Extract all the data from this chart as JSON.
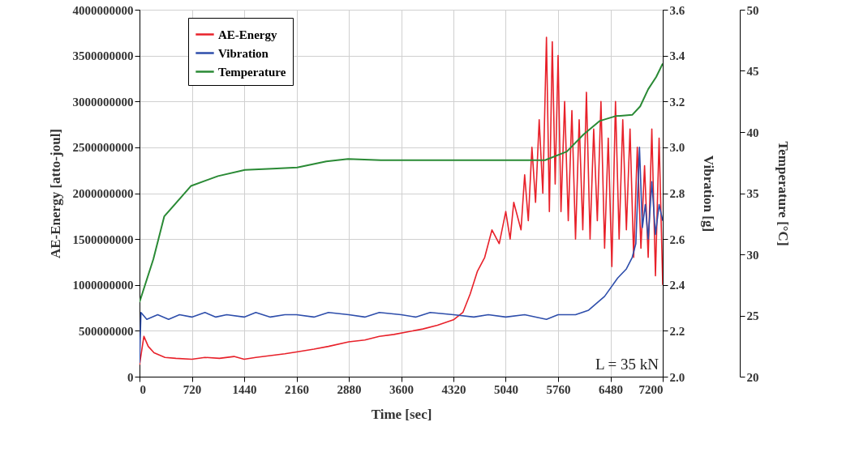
{
  "chart_data": {
    "type": "line",
    "xlabel": "Time [sec]",
    "ylabel": "AE-Energy [atto-joul]",
    "y2label": "Vibration [g]",
    "y3label": "Temperature [°C]",
    "xlim": [
      0,
      7200
    ],
    "xticks": [
      0,
      720,
      1440,
      2160,
      2880,
      3600,
      4320,
      5040,
      5760,
      6480,
      7200
    ],
    "ylim": [
      0,
      4000000000
    ],
    "yticks": [
      0,
      500000000,
      1000000000,
      1500000000,
      2000000000,
      2500000000,
      3000000000,
      3500000000,
      4000000000
    ],
    "y2lim": [
      2.0,
      3.6
    ],
    "y2ticks": [
      {
        "value": 2,
        "label": "2.0"
      },
      2.2,
      2.4,
      2.6,
      2.8,
      {
        "value": 3,
        "label": "3.0"
      },
      3.2,
      3.4,
      3.6
    ],
    "y3lim": [
      20,
      50
    ],
    "y3ticks": [
      20,
      25,
      30,
      35,
      40,
      45,
      50
    ],
    "grid": true,
    "legend": "top left",
    "annotations": [
      "L = 35 kN"
    ],
    "series": [
      {
        "name": "AE-Energy",
        "color": "#e8212a",
        "axis": "y",
        "x": [
          0,
          60,
          120,
          200,
          350,
          500,
          720,
          900,
          1100,
          1300,
          1440,
          1600,
          1800,
          2000,
          2160,
          2400,
          2600,
          2880,
          3100,
          3300,
          3500,
          3700,
          3900,
          4100,
          4320,
          4450,
          4550,
          4650,
          4750,
          4850,
          4950,
          5040,
          5100,
          5150,
          5250,
          5300,
          5350,
          5400,
          5450,
          5500,
          5550,
          5600,
          5640,
          5680,
          5720,
          5760,
          5800,
          5850,
          5900,
          5950,
          6000,
          6050,
          6100,
          6150,
          6200,
          6250,
          6300,
          6350,
          6400,
          6450,
          6500,
          6550,
          6600,
          6650,
          6700,
          6750,
          6800,
          6850,
          6900,
          6950,
          7000,
          7050,
          7100,
          7150,
          7200
        ],
        "values": [
          130000000,
          440000000,
          330000000,
          260000000,
          210000000,
          200000000,
          190000000,
          210000000,
          200000000,
          220000000,
          190000000,
          210000000,
          230000000,
          250000000,
          270000000,
          300000000,
          330000000,
          380000000,
          400000000,
          440000000,
          460000000,
          490000000,
          520000000,
          560000000,
          620000000,
          700000000,
          900000000,
          1150000000,
          1300000000,
          1600000000,
          1450000000,
          1800000000,
          1500000000,
          1900000000,
          1600000000,
          2200000000,
          1700000000,
          2500000000,
          1900000000,
          2800000000,
          2000000000,
          3700000000,
          1800000000,
          3650000000,
          2100000000,
          3500000000,
          1800000000,
          3000000000,
          1700000000,
          2900000000,
          1500000000,
          2800000000,
          1600000000,
          3100000000,
          1500000000,
          2700000000,
          1700000000,
          3000000000,
          1400000000,
          2600000000,
          1200000000,
          3000000000,
          1500000000,
          2800000000,
          1600000000,
          2700000000,
          1300000000,
          2500000000,
          1400000000,
          2300000000,
          1300000000,
          2700000000,
          1100000000,
          2600000000,
          1000000000
        ]
      },
      {
        "name": "Vibration",
        "color": "#2e4eab",
        "axis": "y2",
        "x": [
          0,
          20,
          100,
          250,
          400,
          550,
          720,
          900,
          1050,
          1200,
          1440,
          1600,
          1800,
          2000,
          2160,
          2400,
          2600,
          2880,
          3100,
          3300,
          3600,
          3800,
          4000,
          4320,
          4600,
          4800,
          5040,
          5300,
          5600,
          5760,
          6000,
          6180,
          6400,
          6580,
          6700,
          6780,
          6830,
          6880,
          6920,
          6960,
          7000,
          7050,
          7100,
          7150,
          7200
        ],
        "values": [
          2.06,
          2.28,
          2.25,
          2.27,
          2.25,
          2.27,
          2.26,
          2.28,
          2.26,
          2.27,
          2.26,
          2.28,
          2.26,
          2.27,
          2.27,
          2.26,
          2.28,
          2.27,
          2.26,
          2.28,
          2.27,
          2.26,
          2.28,
          2.27,
          2.26,
          2.27,
          2.26,
          2.27,
          2.25,
          2.27,
          2.27,
          2.29,
          2.35,
          2.43,
          2.47,
          2.52,
          2.58,
          3.0,
          2.65,
          2.75,
          2.6,
          2.85,
          2.62,
          2.75,
          2.68
        ]
      },
      {
        "name": "Temperature",
        "color": "#2a8a35",
        "axis": "y3",
        "x": [
          0,
          190,
          340,
          710,
          1080,
          1450,
          1830,
          2170,
          2570,
          2870,
          3320,
          4210,
          5580,
          5880,
          6110,
          6330,
          6550,
          6780,
          6890,
          7000,
          7110,
          7200
        ],
        "values": [
          26.1,
          29.6,
          33.1,
          35.6,
          36.4,
          36.9,
          37.0,
          37.1,
          37.6,
          37.8,
          37.7,
          37.7,
          37.7,
          38.4,
          39.8,
          40.9,
          41.3,
          41.4,
          42.1,
          43.5,
          44.5,
          45.6
        ]
      }
    ]
  }
}
